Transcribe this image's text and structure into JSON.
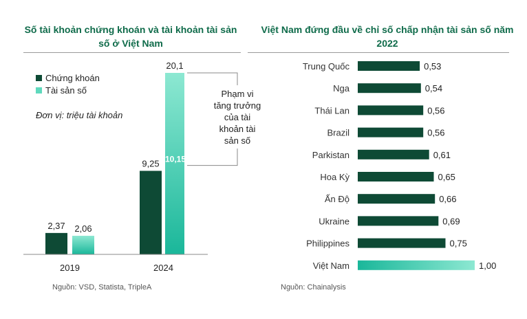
{
  "colors": {
    "dark_green": "#0e4a35",
    "teal_light": "#8de8d2",
    "teal_dark": "#1ab79a",
    "title_green": "#0f6b4a"
  },
  "left": {
    "title_line1": "Số tài khoản chứng khoán và tài khoản tài sản",
    "title_line2": "số ở Việt Nam",
    "source": "Nguồn: VSD, Statista, TripleA",
    "annotation_lines": [
      "Phạm vi",
      "tăng trưởng",
      "của tài",
      "khoản tài",
      "sản số"
    ]
  },
  "right": {
    "title_line1": "Việt Nam đứng đầu về chỉ số chấp nhận tài sản số năm",
    "title_line2": "2022",
    "source": "Nguồn: Chainalysis"
  },
  "chart_data": [
    {
      "type": "bar",
      "title": "Số tài khoản chứng khoán và tài khoản tài sản số ở Việt Nam",
      "unit_note": "Đơn vị: triệu tài khoản",
      "categories": [
        "2019",
        "2024"
      ],
      "series": [
        {
          "name": "Chứng khoán",
          "values": [
            2.37,
            9.25
          ],
          "labels": [
            "2,37",
            "9,25"
          ],
          "color": "#0e4a35"
        },
        {
          "name": "Tài sản số",
          "values": [
            2.06,
            20.1
          ],
          "labels": [
            "2,06",
            "20,1"
          ],
          "color": "#5fd9bd"
        }
      ],
      "annotation_value_label": "10,15",
      "annotation_value": 10.15,
      "legend_position": "top-left",
      "grid": false
    },
    {
      "type": "bar",
      "orientation": "horizontal",
      "title": "Việt Nam đứng đầu về chỉ số chấp nhận tài sản số năm 2022",
      "categories": [
        "Trung Quốc",
        "Nga",
        "Thái Lan",
        "Brazil",
        "Parkistan",
        "Hoa Kỳ",
        "Ấn Độ",
        "Ukraine",
        "Philippines",
        "Việt Nam"
      ],
      "values": [
        0.53,
        0.54,
        0.56,
        0.56,
        0.61,
        0.65,
        0.66,
        0.69,
        0.75,
        1.0
      ],
      "labels": [
        "0,53",
        "0,54",
        "0,56",
        "0,56",
        "0,61",
        "0,65",
        "0,66",
        "0,69",
        "0,75",
        "1,00"
      ],
      "highlight": "Việt Nam",
      "xlim": [
        0,
        1
      ],
      "grid": false
    }
  ]
}
